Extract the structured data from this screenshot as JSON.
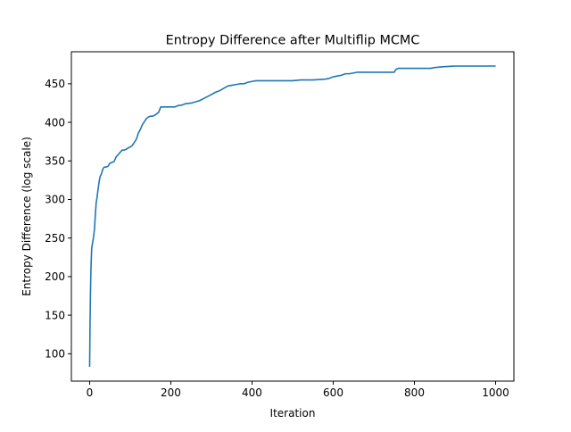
{
  "chart_data": {
    "type": "line",
    "title": "Entropy Difference after Multiflip MCMC",
    "xlabel": "Iteration",
    "ylabel": "Entropy Difference (log scale)",
    "xlim": [
      -45,
      1045
    ],
    "ylim": [
      64.5,
      491.5
    ],
    "xticks": [
      0,
      200,
      400,
      600,
      800,
      1000
    ],
    "yticks": [
      100,
      150,
      200,
      250,
      300,
      350,
      400,
      450
    ],
    "grid": false,
    "legend": "none",
    "series": [
      {
        "color": "#1f77b4",
        "x": [
          0,
          1,
          2,
          3,
          4,
          5,
          6,
          7,
          8,
          10,
          12,
          14,
          16,
          18,
          20,
          22,
          24,
          26,
          28,
          30,
          33,
          36,
          40,
          45,
          50,
          55,
          60,
          65,
          70,
          75,
          80,
          85,
          90,
          95,
          100,
          105,
          110,
          115,
          120,
          125,
          130,
          135,
          140,
          145,
          150,
          155,
          160,
          165,
          170,
          175,
          180,
          185,
          190,
          200,
          210,
          220,
          225,
          230,
          235,
          250,
          270,
          285,
          300,
          310,
          320,
          330,
          340,
          350,
          360,
          370,
          380,
          390,
          400,
          410,
          420,
          440,
          460,
          480,
          500,
          520,
          550,
          580,
          590,
          600,
          610,
          620,
          630,
          640,
          650,
          660,
          680,
          700,
          730,
          750,
          755,
          760,
          780,
          800,
          840,
          850,
          870,
          900,
          950,
          1000
        ],
        "y": [
          83,
          140,
          178,
          205,
          222,
          236,
          240,
          243,
          246,
          253,
          262,
          280,
          295,
          302,
          310,
          318,
          325,
          330,
          332,
          335,
          340,
          342,
          342,
          343,
          347,
          348,
          349,
          355,
          358,
          361,
          364,
          364,
          365,
          367,
          368,
          370,
          374,
          378,
          386,
          391,
          397,
          401,
          405,
          407,
          408,
          408,
          409,
          411,
          413,
          420,
          420,
          420,
          420,
          420,
          420,
          422,
          422,
          423,
          424,
          425,
          428,
          432,
          436,
          439,
          441,
          444,
          447,
          448,
          449,
          450,
          450,
          452,
          453,
          454,
          454,
          454,
          454,
          454,
          454,
          455,
          455,
          456,
          457,
          459,
          460,
          461,
          463,
          463,
          464,
          465,
          465,
          465,
          465,
          465,
          469,
          470,
          470,
          470,
          470,
          471,
          472,
          473,
          473,
          473
        ]
      }
    ]
  }
}
